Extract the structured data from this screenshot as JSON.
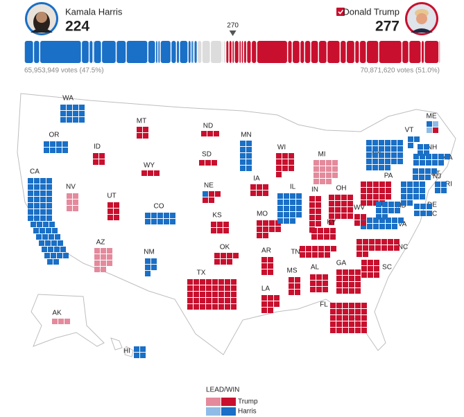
{
  "header": {
    "majority_mark": 270,
    "candidates": [
      {
        "name": "Kamala Harris",
        "electoral_votes": 224,
        "votes_label": "65,953,949 votes (47.5%)"
      },
      {
        "name": "Donald Trump",
        "electoral_votes": 277,
        "votes_label": "70,871,620 votes (51.0%)"
      }
    ]
  },
  "colors": {
    "harris_win": "#1a6fc6",
    "harris_lead": "#8fbce6",
    "trump_win": "#c8102e",
    "trump_lead": "#e48a9c",
    "uncalled": "#dcdcdc"
  },
  "states": [
    {
      "label": "WA",
      "harris_win": 12
    },
    {
      "label": "OR",
      "harris_win": 8
    },
    {
      "label": "CA",
      "harris_win": 54
    },
    {
      "label": "NV",
      "trump_lead": 6
    },
    {
      "label": "ID",
      "trump_win": 4
    },
    {
      "label": "MT",
      "trump_win": 4
    },
    {
      "label": "WY",
      "trump_win": 3
    },
    {
      "label": "UT",
      "trump_win": 6
    },
    {
      "label": "AZ",
      "trump_lead": 11
    },
    {
      "label": "CO",
      "harris_win": 10
    },
    {
      "label": "NM",
      "harris_win": 5
    },
    {
      "label": "ND",
      "trump_win": 3
    },
    {
      "label": "SD",
      "trump_win": 3
    },
    {
      "label": "NE",
      "harris_win": 1,
      "trump_win": 4
    },
    {
      "label": "KS",
      "trump_win": 6
    },
    {
      "label": "OK",
      "trump_win": 7
    },
    {
      "label": "TX",
      "trump_win": 40
    },
    {
      "label": "MN",
      "harris_win": 10
    },
    {
      "label": "IA",
      "trump_win": 6
    },
    {
      "label": "MO",
      "trump_win": 10
    },
    {
      "label": "AR",
      "trump_win": 6
    },
    {
      "label": "LA",
      "trump_win": 8
    },
    {
      "label": "WI",
      "trump_win": 10
    },
    {
      "label": "IL",
      "harris_win": 19
    },
    {
      "label": "MI",
      "trump_lead": 15
    },
    {
      "label": "IN",
      "trump_win": 11
    },
    {
      "label": "OH",
      "trump_win": 17
    },
    {
      "label": "KY",
      "trump_win": 8
    },
    {
      "label": "TN",
      "trump_win": 11
    },
    {
      "label": "MS",
      "trump_win": 6
    },
    {
      "label": "AL",
      "trump_win": 9
    },
    {
      "label": "GA",
      "trump_win": 16
    },
    {
      "label": "FL",
      "trump_win": 30
    },
    {
      "label": "SC",
      "trump_win": 9
    },
    {
      "label": "NC",
      "trump_win": 16
    },
    {
      "label": "VA",
      "harris_win": 13
    },
    {
      "label": "WV",
      "trump_win": 4
    },
    {
      "label": "PA",
      "trump_win": 19
    },
    {
      "label": "NY",
      "harris_win": 28
    },
    {
      "label": "MD",
      "harris_win": 10
    },
    {
      "label": "DE",
      "harris_win": 3
    },
    {
      "label": "DC",
      "harris_win": 3
    },
    {
      "label": "NJ",
      "harris_win": 14
    },
    {
      "label": "CT",
      "harris_win": 7
    },
    {
      "label": "RI",
      "harris_win": 4
    },
    {
      "label": "MA",
      "harris_win": 11
    },
    {
      "label": "NH",
      "harris_win": 4
    },
    {
      "label": "VT",
      "harris_win": 3
    },
    {
      "label": "ME",
      "harris_win": 1,
      "harris_lead": 2,
      "trump_win": 1
    },
    {
      "label": "AK",
      "trump_lead": 3
    },
    {
      "label": "HI",
      "harris_win": 4
    }
  ],
  "legend": {
    "title": "LEAD/WIN",
    "trump": "Trump",
    "harris": "Harris"
  }
}
